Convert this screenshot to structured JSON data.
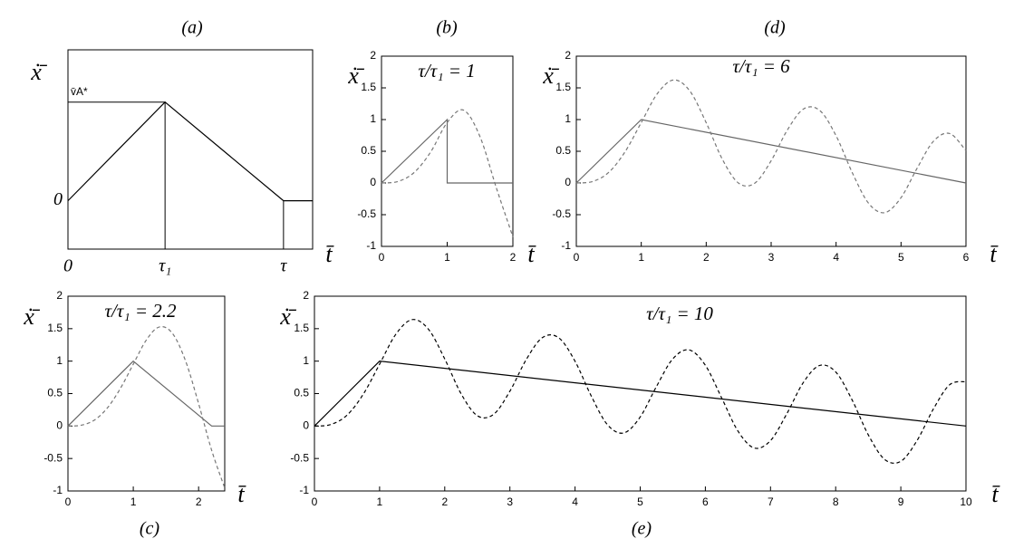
{
  "chart_data": [
    {
      "type": "line",
      "caption": "(a)",
      "x_label": "t̄",
      "y_label": "ẋ̄",
      "xlim": [
        0,
        2.52
      ],
      "ylim": [
        -0.49,
        1.53
      ],
      "xticks": [
        0,
        {
          "value": 1,
          "label": "τ₁"
        },
        {
          "value": 2.22,
          "label": "τ"
        }
      ],
      "yticks": [
        0,
        {
          "value": 1,
          "label": "v̄A*"
        }
      ],
      "tick_marks": false,
      "guides": true,
      "series": [
        {
          "color": "#000000",
          "dashed": false,
          "x": [
            0,
            1,
            2.22,
            2.52
          ],
          "values": [
            0,
            1,
            0,
            0
          ]
        }
      ]
    },
    {
      "type": "line",
      "caption": "(b)",
      "annotation": "τ/τ₁ = 1",
      "annotation_color": "#1f1fd0",
      "x_label": "t̄",
      "y_label": "ẋ̄",
      "xlim": [
        0,
        2
      ],
      "ylim": [
        -1,
        2
      ],
      "xticks": [
        0,
        1,
        2
      ],
      "yticks": [
        -1,
        -0.5,
        0,
        0.5,
        1,
        1.5,
        2
      ],
      "series": [
        {
          "color": "#666666",
          "dashed": false,
          "x": [
            0,
            1,
            1,
            2
          ],
          "values": [
            0,
            1,
            0,
            0
          ]
        },
        {
          "color": "#777777",
          "dashed": true,
          "x": [
            0,
            0.25,
            0.5,
            0.75,
            1,
            1.25,
            1.5,
            1.75,
            2
          ],
          "values": [
            0,
            0.023,
            0.168,
            0.491,
            0.953,
            1.149,
            0.729,
            -0.083,
            -0.85
          ]
        }
      ]
    },
    {
      "type": "line",
      "caption": "(c)",
      "annotation": "τ/τ₁ = 2.2",
      "annotation_color": "#2f8fef",
      "x_label": "t̄",
      "y_label": "ẋ̄",
      "xlim": [
        0,
        2.4
      ],
      "ylim": [
        -1,
        2
      ],
      "xticks": [
        0,
        1,
        2
      ],
      "yticks": [
        -1,
        -0.5,
        0,
        0.5,
        1,
        1.5,
        2
      ],
      "series": [
        {
          "color": "#666666",
          "dashed": false,
          "x": [
            0,
            1,
            2.2,
            2.4
          ],
          "values": [
            0,
            1,
            0,
            0
          ]
        },
        {
          "color": "#777777",
          "dashed": true,
          "x": [
            0,
            0.2,
            0.4,
            0.6,
            0.8,
            1,
            1.2,
            1.4,
            1.6,
            1.8,
            2,
            2.2,
            2.4
          ],
          "values": [
            0,
            0.012,
            0.089,
            0.275,
            0.575,
            0.953,
            1.326,
            1.527,
            1.427,
            1.004,
            0.346,
            -0.374,
            -0.954
          ]
        }
      ]
    },
    {
      "type": "line",
      "caption": "(d)",
      "annotation": "τ/τ₁ = 6",
      "annotation_color": "#33e033",
      "x_label": "t̄",
      "y_label": "ẋ̄",
      "xlim": [
        0,
        6
      ],
      "ylim": [
        -1,
        2
      ],
      "xticks": [
        0,
        1,
        2,
        3,
        4,
        5,
        6
      ],
      "yticks": [
        -1,
        -0.5,
        0,
        0.5,
        1,
        1.5,
        2
      ],
      "series": [
        {
          "color": "#666666",
          "dashed": false,
          "x": [
            0,
            1,
            6
          ],
          "values": [
            0,
            1,
            0
          ]
        },
        {
          "color": "#777777",
          "dashed": true,
          "x": [
            0,
            0.25,
            0.5,
            0.75,
            1,
            1.25,
            1.5,
            1.75,
            2,
            2.25,
            2.5,
            2.75,
            3,
            3.25,
            3.5,
            3.75,
            4,
            4.25,
            4.5,
            4.75,
            5,
            5.25,
            5.5,
            5.75,
            6
          ],
          "values": [
            0,
            0.023,
            0.168,
            0.491,
            0.953,
            1.413,
            1.625,
            1.448,
            0.95,
            0.371,
            -0.004,
            -0.001,
            0.351,
            0.836,
            1.168,
            1.142,
            0.744,
            0.161,
            -0.32,
            -0.468,
            -0.231,
            0.237,
            0.659,
            0.78,
            0.51
          ]
        }
      ]
    },
    {
      "type": "line",
      "caption": "(e)",
      "annotation": "τ/τ₁ = 10",
      "annotation_color": "#1f8a1f",
      "x_label": "t̄",
      "y_label": "ẋ̄",
      "xlim": [
        0,
        10
      ],
      "ylim": [
        -1,
        2
      ],
      "xticks": [
        0,
        1,
        2,
        3,
        4,
        5,
        6,
        7,
        8,
        9,
        10
      ],
      "yticks": [
        -1,
        -0.5,
        0,
        0.5,
        1,
        1.5,
        2
      ],
      "series": [
        {
          "color": "#000000",
          "dashed": false,
          "x": [
            0,
            1,
            10
          ],
          "values": [
            0,
            1,
            0
          ]
        },
        {
          "color": "#000000",
          "dashed": true,
          "x": [
            0,
            0.25,
            0.5,
            0.75,
            1,
            1.25,
            1.5,
            1.75,
            2,
            2.25,
            2.5,
            2.75,
            3,
            3.25,
            3.5,
            3.75,
            4,
            4.25,
            4.5,
            4.75,
            5,
            5.25,
            5.5,
            5.75,
            6,
            6.25,
            6.5,
            6.75,
            7,
            7.25,
            7.5,
            7.75,
            8,
            8.25,
            8.5,
            8.75,
            9,
            9.25,
            9.5,
            9.75,
            10
          ],
          "values": [
            0,
            0.023,
            0.168,
            0.491,
            0.953,
            1.415,
            1.64,
            1.491,
            1.034,
            0.499,
            0.159,
            0.18,
            0.537,
            1.023,
            1.363,
            1.359,
            0.998,
            0.46,
            0.017,
            -0.106,
            0.14,
            0.61,
            1.035,
            1.173,
            0.936,
            0.434,
            -0.077,
            -0.338,
            -0.224,
            0.189,
            0.665,
            0.932,
            0.834,
            0.407,
            -0.134,
            -0.513,
            -0.543,
            -0.222,
            0.263,
            0.637,
            0.684
          ]
        }
      ]
    }
  ]
}
